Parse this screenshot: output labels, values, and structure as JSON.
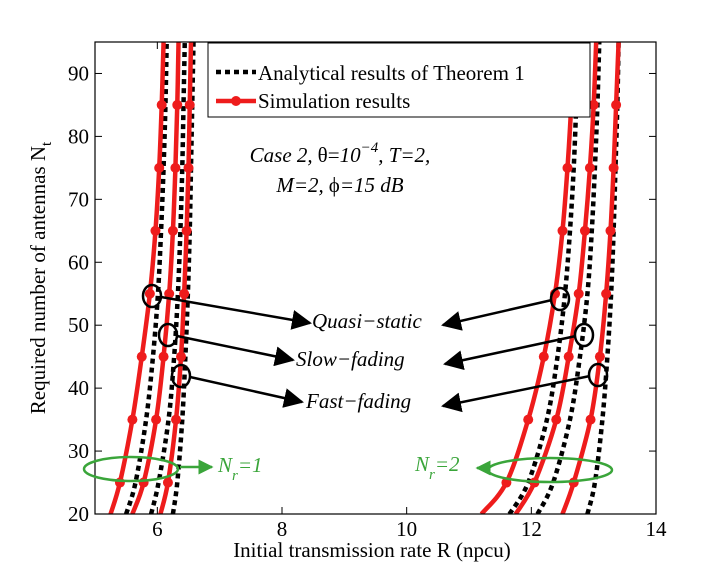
{
  "chart_data": {
    "type": "line",
    "xlabel": "Initial transmission rate R (npcu)",
    "ylabel": "Required number of antennas N",
    "ylabel_sub": "t",
    "xlim": [
      5,
      14
    ],
    "ylim": [
      20,
      95
    ],
    "xticks": [
      6,
      8,
      10,
      12,
      14
    ],
    "yticks": [
      20,
      30,
      40,
      50,
      60,
      70,
      80,
      90
    ],
    "legend": {
      "analytical": "Analytical results of Theorem 1",
      "simulation": "Simulation results",
      "placement": "top-center"
    },
    "conditions": {
      "line1": {
        "case": "Case 2,",
        "theta_sym": "θ",
        "eq1": "=",
        "theta_mant": "10",
        "theta_exp": "−4",
        "rest": ", T=2,"
      },
      "line2": {
        "m": "M=2,",
        "phi_sym": "ϕ",
        "phi_rest": "=15 dB"
      }
    },
    "annotations": [
      "Quasi−static",
      "Slow−fading",
      "Fast−fading"
    ],
    "nr_labels": [
      {
        "n": "N",
        "sub": "r",
        "rest": "=1"
      },
      {
        "n": "N",
        "sub": "r",
        "rest": "=2"
      }
    ],
    "colors": {
      "simulation": "#ee1c1c",
      "analytical": "#000000",
      "nr": "#3aa53a"
    },
    "series": [
      {
        "name": "Simulation, Quasi-static, Nr=1",
        "kind": "simulation",
        "points": [
          [
            5.25,
            20
          ],
          [
            5.4,
            25
          ],
          [
            5.6,
            35
          ],
          [
            5.75,
            45
          ],
          [
            5.88,
            55
          ],
          [
            5.97,
            65
          ],
          [
            6.03,
            75
          ],
          [
            6.07,
            85
          ],
          [
            6.1,
            95
          ]
        ]
      },
      {
        "name": "Simulation, Slow-fading, Nr=1",
        "kind": "simulation",
        "points": [
          [
            5.6,
            20
          ],
          [
            5.78,
            25
          ],
          [
            5.98,
            35
          ],
          [
            6.1,
            45
          ],
          [
            6.19,
            55
          ],
          [
            6.25,
            65
          ],
          [
            6.29,
            75
          ],
          [
            6.32,
            85
          ],
          [
            6.34,
            95
          ]
        ]
      },
      {
        "name": "Simulation, Fast-fading, Nr=1",
        "kind": "simulation",
        "points": [
          [
            6.05,
            20
          ],
          [
            6.17,
            25
          ],
          [
            6.3,
            35
          ],
          [
            6.38,
            45
          ],
          [
            6.43,
            55
          ],
          [
            6.47,
            65
          ],
          [
            6.5,
            75
          ],
          [
            6.52,
            85
          ],
          [
            6.54,
            95
          ]
        ]
      },
      {
        "name": "Analytical, Quasi-static, Nr=1",
        "kind": "analytical",
        "points": [
          [
            5.5,
            20
          ],
          [
            5.65,
            25
          ],
          [
            5.82,
            35
          ],
          [
            5.93,
            45
          ],
          [
            6.01,
            55
          ],
          [
            6.06,
            65
          ],
          [
            6.1,
            75
          ],
          [
            6.13,
            85
          ],
          [
            6.15,
            95
          ]
        ]
      },
      {
        "name": "Analytical, Slow-fading, Nr=1",
        "kind": "analytical",
        "points": [
          [
            5.9,
            20
          ],
          [
            6.02,
            25
          ],
          [
            6.18,
            35
          ],
          [
            6.27,
            45
          ],
          [
            6.33,
            55
          ],
          [
            6.37,
            65
          ],
          [
            6.4,
            75
          ],
          [
            6.42,
            85
          ],
          [
            6.44,
            95
          ]
        ]
      },
      {
        "name": "Analytical, Fast-fading, Nr=1",
        "kind": "analytical",
        "points": [
          [
            6.25,
            20
          ],
          [
            6.32,
            25
          ],
          [
            6.4,
            35
          ],
          [
            6.45,
            45
          ],
          [
            6.49,
            55
          ],
          [
            6.52,
            65
          ],
          [
            6.54,
            75
          ],
          [
            6.56,
            85
          ],
          [
            6.58,
            95
          ]
        ]
      },
      {
        "name": "Simulation, Quasi-static, Nr=2",
        "kind": "simulation",
        "points": [
          [
            11.2,
            20
          ],
          [
            11.6,
            25
          ],
          [
            11.95,
            35
          ],
          [
            12.2,
            45
          ],
          [
            12.38,
            55
          ],
          [
            12.5,
            65
          ],
          [
            12.58,
            75
          ],
          [
            12.64,
            85
          ],
          [
            12.68,
            95
          ]
        ]
      },
      {
        "name": "Simulation, Slow-fading, Nr=2",
        "kind": "simulation",
        "points": [
          [
            11.75,
            20
          ],
          [
            12.05,
            25
          ],
          [
            12.4,
            35
          ],
          [
            12.6,
            45
          ],
          [
            12.76,
            55
          ],
          [
            12.86,
            65
          ],
          [
            12.94,
            75
          ],
          [
            13.0,
            85
          ],
          [
            13.04,
            95
          ]
        ]
      },
      {
        "name": "Simulation, Fast-fading, Nr=2",
        "kind": "simulation",
        "points": [
          [
            12.5,
            20
          ],
          [
            12.68,
            25
          ],
          [
            12.95,
            35
          ],
          [
            13.1,
            45
          ],
          [
            13.2,
            55
          ],
          [
            13.27,
            65
          ],
          [
            13.32,
            75
          ],
          [
            13.36,
            85
          ],
          [
            13.4,
            95
          ]
        ]
      },
      {
        "name": "Analytical, Quasi-static, Nr=2",
        "kind": "analytical",
        "points": [
          [
            11.65,
            20
          ],
          [
            11.95,
            25
          ],
          [
            12.25,
            35
          ],
          [
            12.42,
            45
          ],
          [
            12.54,
            55
          ],
          [
            12.62,
            65
          ],
          [
            12.68,
            75
          ],
          [
            12.72,
            85
          ],
          [
            12.75,
            95
          ]
        ]
      },
      {
        "name": "Analytical, Slow-fading, Nr=2",
        "kind": "analytical",
        "points": [
          [
            12.1,
            20
          ],
          [
            12.35,
            25
          ],
          [
            12.62,
            35
          ],
          [
            12.78,
            45
          ],
          [
            12.9,
            55
          ],
          [
            12.97,
            65
          ],
          [
            13.02,
            75
          ],
          [
            13.06,
            85
          ],
          [
            13.09,
            95
          ]
        ]
      },
      {
        "name": "Analytical, Fast-fading, Nr=2",
        "kind": "analytical",
        "points": [
          [
            12.9,
            20
          ],
          [
            13.02,
            25
          ],
          [
            13.14,
            35
          ],
          [
            13.22,
            45
          ],
          [
            13.28,
            55
          ],
          [
            13.32,
            65
          ],
          [
            13.35,
            75
          ],
          [
            13.38,
            85
          ],
          [
            13.4,
            95
          ]
        ]
      }
    ]
  }
}
